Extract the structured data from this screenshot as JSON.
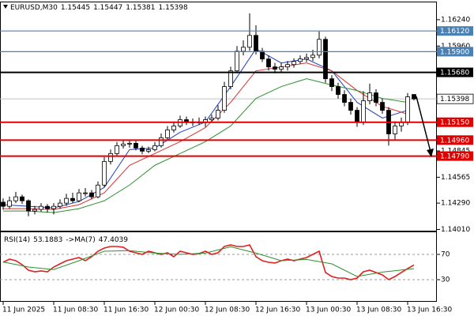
{
  "chart_data": [
    {
      "type": "candlestick",
      "title": "EURUSD,M30",
      "open": [
        1.143,
        1.14256,
        1.14315,
        1.14357,
        1.14315,
        1.14206,
        1.14223,
        1.14256,
        1.14231,
        1.14256,
        1.1429,
        1.1434,
        1.14315,
        1.14399,
        1.14399,
        1.14357,
        1.14482,
        1.14733,
        1.14817,
        1.14901,
        1.14918,
        1.14926,
        1.14876,
        1.14842,
        1.14859,
        1.14901,
        1.14985,
        1.15068,
        1.1511,
        1.15177,
        1.15152,
        1.15152,
        1.15152,
        1.15177,
        1.15194,
        1.15277,
        1.15529,
        1.15696,
        1.15905,
        1.15947,
        1.16073,
        1.15905,
        1.15822,
        1.15738,
        1.15713,
        1.15738,
        1.15763,
        1.15796,
        1.15822,
        1.15838,
        1.15863,
        1.16031,
        1.15612,
        1.15529,
        1.15445,
        1.15361,
        1.15277,
        1.15152,
        1.15378,
        1.15462,
        1.15361,
        1.15277,
        1.15026,
        1.1511,
        1.15152,
        1.15445
      ],
      "high": [
        1.1434,
        1.1436,
        1.1441,
        1.1438,
        1.1433,
        1.1426,
        1.1429,
        1.1428,
        1.1429,
        1.1433,
        1.1439,
        1.144,
        1.1444,
        1.1445,
        1.1443,
        1.1452,
        1.1478,
        1.1486,
        1.1494,
        1.1496,
        1.1496,
        1.1495,
        1.149,
        1.1489,
        1.1494,
        1.1503,
        1.1511,
        1.1515,
        1.1522,
        1.1521,
        1.1519,
        1.152,
        1.1521,
        1.1523,
        1.1533,
        1.1558,
        1.1574,
        1.1596,
        1.1602,
        1.16307,
        1.1618,
        1.1594,
        1.1586,
        1.1578,
        1.1578,
        1.158,
        1.1583,
        1.1586,
        1.1588,
        1.1592,
        1.16115,
        1.1606,
        1.1565,
        1.1557,
        1.1549,
        1.154,
        1.1531,
        1.1548,
        1.1556,
        1.155,
        1.154,
        1.1531,
        1.1516,
        1.152,
        1.1546,
        1.15447
      ],
      "low": [
        1.1422,
        1.1423,
        1.1429,
        1.1428,
        1.1415,
        1.1417,
        1.142,
        1.1419,
        1.1417,
        1.1423,
        1.1426,
        1.1429,
        1.143,
        1.1436,
        1.1433,
        1.1434,
        1.1446,
        1.147,
        1.1479,
        1.1487,
        1.1488,
        1.1485,
        1.1481,
        1.1482,
        1.1484,
        1.1488,
        1.1496,
        1.1504,
        1.1509,
        1.1512,
        1.1511,
        1.1512,
        1.151,
        1.1515,
        1.1517,
        1.1525,
        1.155,
        1.1567,
        1.1586,
        1.1591,
        1.1587,
        1.1579,
        1.157,
        1.1567,
        1.1568,
        1.157,
        1.1573,
        1.1577,
        1.1579,
        1.158,
        1.1583,
        1.1557,
        1.1548,
        1.154,
        1.1532,
        1.1523,
        1.151,
        1.1512,
        1.1534,
        1.1532,
        1.1524,
        1.14901,
        1.1496,
        1.1505,
        1.1512,
        1.15381
      ],
      "close": [
        1.14256,
        1.14315,
        1.14357,
        1.14315,
        1.14206,
        1.14223,
        1.14256,
        1.14231,
        1.14256,
        1.1429,
        1.1434,
        1.14315,
        1.14399,
        1.14399,
        1.14357,
        1.14482,
        1.14733,
        1.14817,
        1.14901,
        1.14918,
        1.14926,
        1.14876,
        1.14842,
        1.14859,
        1.14901,
        1.14985,
        1.15068,
        1.1511,
        1.15177,
        1.15152,
        1.15152,
        1.15152,
        1.15177,
        1.15194,
        1.15277,
        1.15529,
        1.15696,
        1.15905,
        1.15947,
        1.16073,
        1.15905,
        1.15822,
        1.15738,
        1.15713,
        1.15738,
        1.15763,
        1.15796,
        1.15822,
        1.15838,
        1.15863,
        1.16031,
        1.15612,
        1.15529,
        1.15445,
        1.15361,
        1.15277,
        1.15152,
        1.15378,
        1.15462,
        1.15361,
        1.15277,
        1.15026,
        1.1511,
        1.15152,
        1.1542,
        1.15398
      ],
      "up_color": "#ffffff",
      "down_color": "#000000",
      "wick_color": "#000000",
      "series": [
        {
          "color": "#1f3fbf",
          "x": [
            0,
            4,
            8,
            12,
            16,
            20,
            24,
            28,
            32,
            36,
            40,
            44,
            48,
            52,
            56,
            60,
            64
          ],
          "values": [
            1.14273,
            1.14256,
            1.1424,
            1.14307,
            1.14457,
            1.14859,
            1.14876,
            1.15043,
            1.15152,
            1.15529,
            1.1593,
            1.1578,
            1.15822,
            1.15696,
            1.15361,
            1.15194,
            1.15277
          ]
        },
        {
          "color": "#d93030",
          "x": [
            0,
            4,
            8,
            12,
            16,
            20,
            24,
            28,
            32,
            36,
            40,
            44,
            48,
            52,
            56,
            60,
            64
          ],
          "values": [
            1.14231,
            1.14231,
            1.14223,
            1.14273,
            1.14399,
            1.14692,
            1.14817,
            1.14943,
            1.15093,
            1.15361,
            1.15696,
            1.15738,
            1.1578,
            1.15696,
            1.15487,
            1.15319,
            1.15236
          ]
        },
        {
          "color": "#2f8f2f",
          "x": [
            0,
            4,
            8,
            12,
            16,
            20,
            24,
            28,
            32,
            36,
            40,
            44,
            48,
            52,
            56,
            60,
            64
          ],
          "values": [
            1.14206,
            1.14206,
            1.14189,
            1.14231,
            1.14315,
            1.14482,
            1.14692,
            1.14817,
            1.14943,
            1.1511,
            1.15403,
            1.15529,
            1.15612,
            1.15545,
            1.15487,
            1.15403,
            1.15361
          ]
        }
      ],
      "levels": [
        {
          "value": 1.1612,
          "label": "1.16120",
          "color": "#4a80b4"
        },
        {
          "value": 1.159,
          "label": "1.15900",
          "color": "#4a80b4"
        },
        {
          "value": 1.1568,
          "label": "1.15680",
          "color": "#000000"
        },
        {
          "value": 1.1515,
          "label": "1.15150",
          "color": "#e00000"
        },
        {
          "value": 1.1496,
          "label": "1.14960",
          "color": "#e00000"
        },
        {
          "value": 1.1479,
          "label": "1.14790",
          "color": "#e00000"
        }
      ],
      "current_price": 1.15398,
      "ylim": [
        1.13997,
        1.16424
      ],
      "yticks": [
        {
          "value": 1.1624,
          "label": "1.16240"
        },
        {
          "value": 1.1596,
          "label": "1.15960"
        },
        1.14845,
        1.14565,
        {
          "value": 1.1429,
          "label": "1.14290"
        },
        {
          "value": 1.1401,
          "label": "1.14010"
        }
      ],
      "xticks": [
        {
          "value": 0,
          "label": "11 Jun 2025"
        },
        {
          "value": 8,
          "label": "11 Jun 08:30"
        },
        {
          "value": 16,
          "label": "11 Jun 16:30"
        },
        {
          "value": 24,
          "label": "12 Jun 00:30"
        },
        {
          "value": 32,
          "label": "12 Jun 08:30"
        },
        {
          "value": 40,
          "label": "12 Jun 16:30"
        },
        {
          "value": 48,
          "label": "13 Jun 00:30"
        },
        {
          "value": 56,
          "label": "13 Jun 08:30"
        },
        {
          "value": 64,
          "label": "13 Jun 16:30"
        }
      ]
    },
    {
      "type": "line",
      "series": [
        {
          "name": "RSI(14)",
          "color": "#e02020",
          "values": [
            57.5,
            62.5,
            60,
            53.8,
            45,
            42.5,
            43.8,
            42.5,
            50,
            55,
            60,
            62.5,
            65,
            60,
            66.3,
            75,
            80,
            82.5,
            82.5,
            81.3,
            75,
            72.5,
            70,
            75,
            72.5,
            70,
            72.5,
            66.3,
            75,
            72.5,
            70,
            71.3,
            75,
            70,
            72.5,
            82.5,
            85,
            82.5,
            82.5,
            85,
            66.3,
            60,
            57.5,
            56.3,
            60,
            62.5,
            60,
            62.5,
            65,
            70,
            75,
            41.3,
            35,
            32.5,
            32.5,
            30,
            32.5,
            42.5,
            45,
            41.3,
            37.5,
            30,
            35,
            41.3,
            47.5,
            53.1883
          ]
        },
        {
          "name": "->MA(7)",
          "color": "#2f8f2f",
          "x": [
            0,
            4,
            8,
            12,
            16,
            20,
            24,
            28,
            32,
            36,
            40,
            44,
            48,
            52,
            56,
            60,
            65
          ],
          "values": [
            58,
            50,
            46,
            60,
            75,
            76,
            72,
            70,
            72,
            82,
            72,
            60,
            62,
            55,
            35,
            42,
            47.4039
          ]
        }
      ],
      "ylim": [
        0,
        100
      ],
      "yticks": [
        30,
        70
      ]
    }
  ]
}
